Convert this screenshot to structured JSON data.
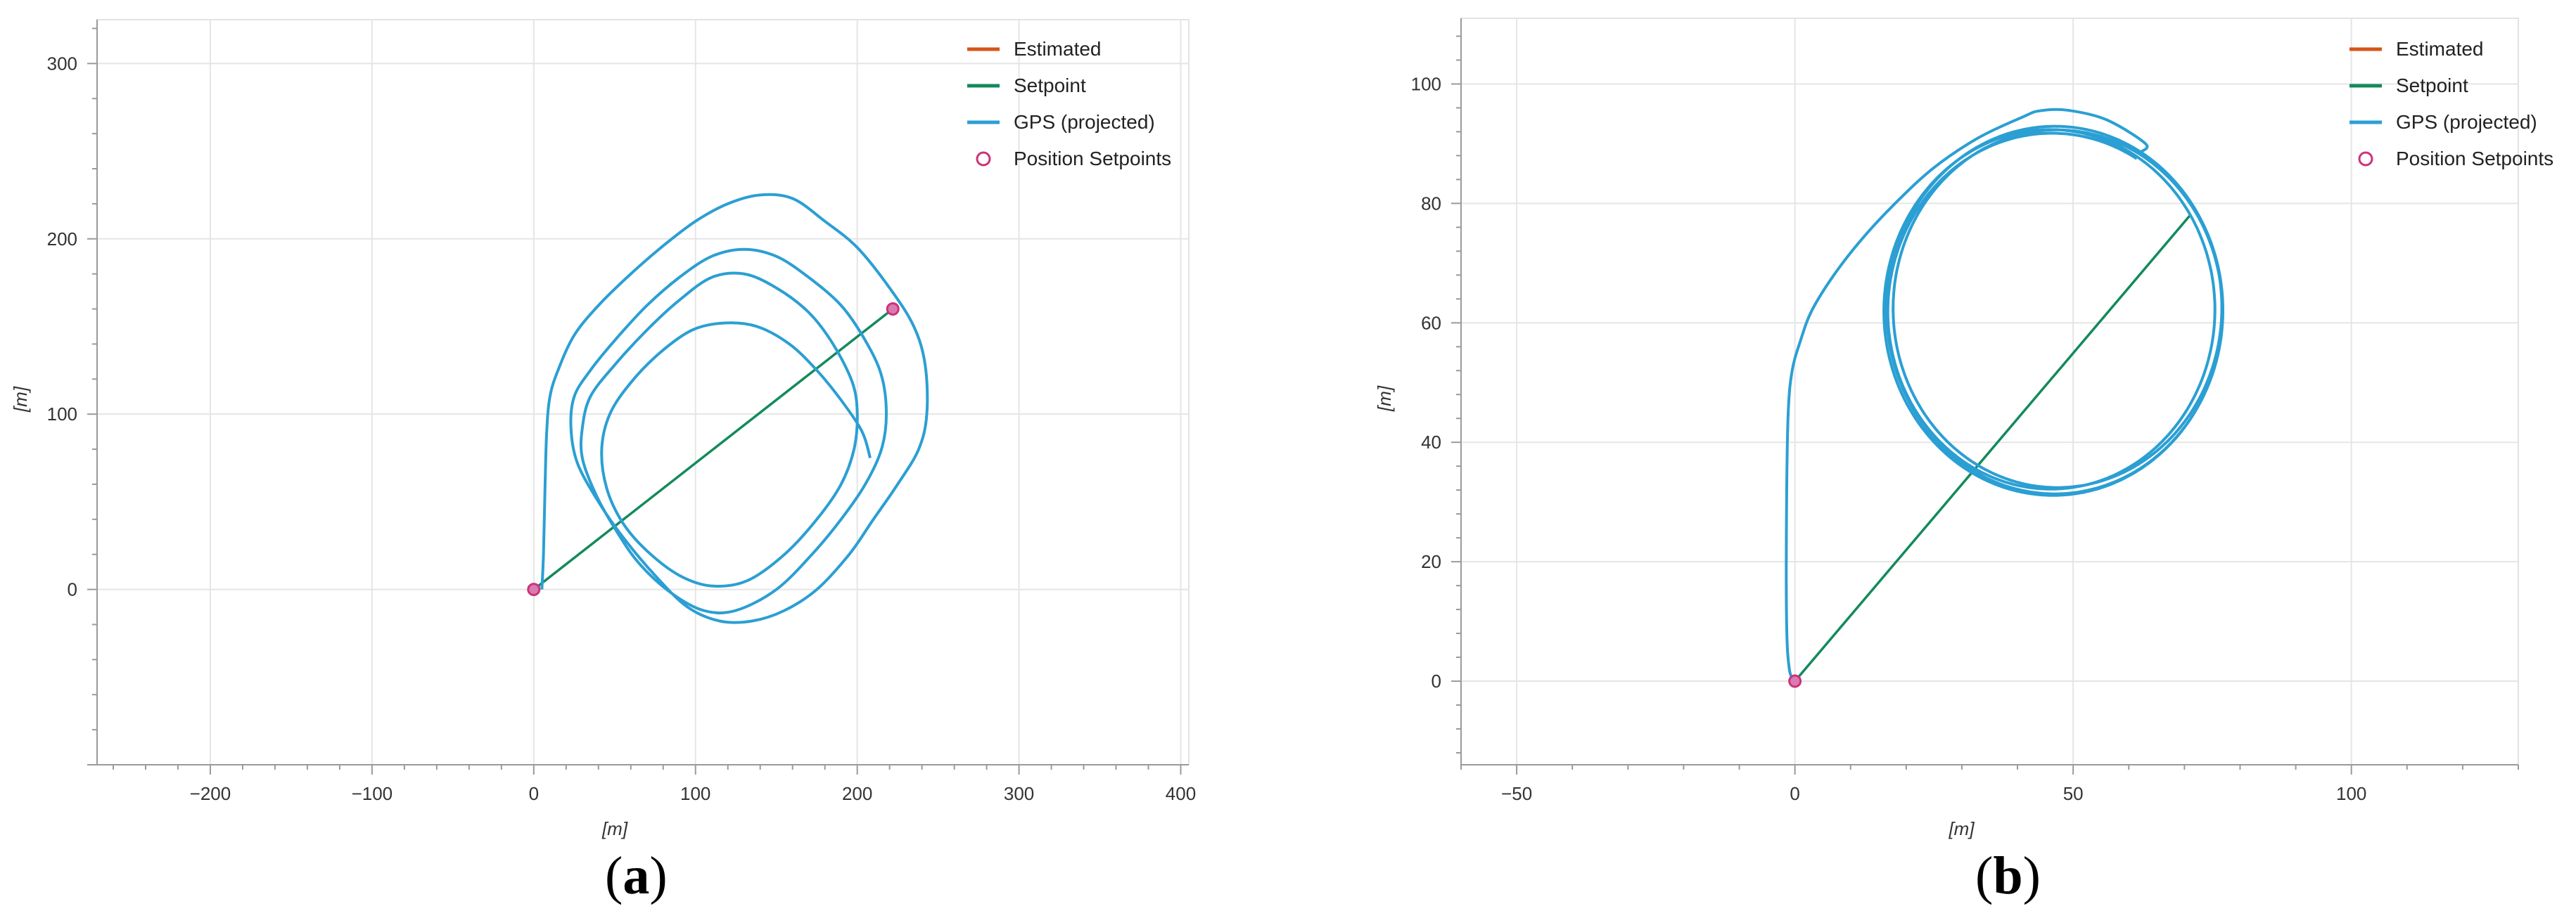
{
  "colors": {
    "estimated": "#d95319",
    "setpoint": "#138a5a",
    "gps": "#2b9fd3",
    "position_setpoint": "#cc3377",
    "grid": "#e5e5e5",
    "axis": "#9a9a9a",
    "tick_text": "#333333"
  },
  "chart_data": [
    {
      "type": "line",
      "panel_label": "a",
      "xlabel": "[m]",
      "ylabel": "[m]",
      "xlim": [
        -270,
        405
      ],
      "ylim": [
        -100,
        325
      ],
      "xticks": [
        -200,
        -100,
        0,
        100,
        200,
        300,
        400
      ],
      "yticks": [
        0,
        100,
        200,
        300
      ],
      "xtick_labels": [
        "−200",
        "−100",
        "0",
        "100",
        "200",
        "300",
        "400"
      ],
      "ytick_labels": [
        "0",
        "100",
        "200",
        "300"
      ],
      "grid": true,
      "legend_position": "top-right",
      "legend": [
        "Estimated",
        "Setpoint",
        "GPS (projected)",
        "Position Setpoints"
      ],
      "series": [
        {
          "name": "GPS (projected)",
          "points": [
            [
              5,
              0
            ],
            [
              6,
              20
            ],
            [
              7,
              60
            ],
            [
              8,
              90
            ],
            [
              10,
              110
            ],
            [
              15,
              125
            ],
            [
              25,
              145
            ],
            [
              40,
              162
            ],
            [
              60,
              180
            ],
            [
              80,
              196
            ],
            [
              100,
              210
            ],
            [
              120,
              220
            ],
            [
              140,
              225
            ],
            [
              160,
              223
            ],
            [
              180,
              210
            ],
            [
              200,
              195
            ],
            [
              220,
              172
            ],
            [
              235,
              150
            ],
            [
              242,
              128
            ],
            [
              243,
              100
            ],
            [
              238,
              80
            ],
            [
              225,
              60
            ],
            [
              210,
              40
            ],
            [
              195,
              20
            ],
            [
              175,
              0
            ],
            [
              155,
              -12
            ],
            [
              135,
              -18
            ],
            [
              115,
              -18
            ],
            [
              95,
              -10
            ],
            [
              75,
              8
            ],
            [
              55,
              30
            ],
            [
              40,
              50
            ],
            [
              27,
              72
            ],
            [
              23,
              92
            ],
            [
              25,
              110
            ],
            [
              35,
              125
            ],
            [
              50,
              142
            ],
            [
              70,
              162
            ],
            [
              90,
              178
            ],
            [
              110,
              190
            ],
            [
              130,
              194
            ],
            [
              150,
              190
            ],
            [
              170,
              178
            ],
            [
              190,
              162
            ],
            [
              205,
              142
            ],
            [
              215,
              122
            ],
            [
              218,
              100
            ],
            [
              215,
              80
            ],
            [
              205,
              60
            ],
            [
              190,
              40
            ],
            [
              172,
              20
            ],
            [
              150,
              0
            ],
            [
              125,
              -12
            ],
            [
              105,
              -12
            ],
            [
              85,
              -2
            ],
            [
              65,
              15
            ],
            [
              50,
              35
            ],
            [
              38,
              55
            ],
            [
              30,
              75
            ],
            [
              30,
              92
            ],
            [
              35,
              110
            ],
            [
              50,
              128
            ],
            [
              70,
              148
            ],
            [
              90,
              165
            ],
            [
              110,
              178
            ],
            [
              130,
              180
            ],
            [
              150,
              172
            ],
            [
              170,
              158
            ],
            [
              185,
              140
            ],
            [
              197,
              118
            ],
            [
              200,
              100
            ],
            [
              198,
              80
            ],
            [
              190,
              60
            ],
            [
              175,
              40
            ],
            [
              155,
              20
            ],
            [
              132,
              5
            ],
            [
              110,
              2
            ],
            [
              90,
              8
            ],
            [
              70,
              22
            ],
            [
              55,
              38
            ],
            [
              45,
              58
            ],
            [
              42,
              80
            ],
            [
              47,
              100
            ],
            [
              60,
              118
            ],
            [
              78,
              135
            ],
            [
              98,
              148
            ],
            [
              118,
              152
            ],
            [
              138,
              150
            ],
            [
              158,
              140
            ],
            [
              175,
              125
            ],
            [
              190,
              108
            ],
            [
              203,
              90
            ],
            [
              208,
              75
            ]
          ]
        },
        {
          "name": "Setpoint",
          "points": [
            [
              0,
              0
            ],
            [
              222,
              160
            ]
          ]
        },
        {
          "name": "Position Setpoints",
          "points": [
            [
              0,
              0
            ],
            [
              222,
              160
            ]
          ]
        }
      ]
    },
    {
      "type": "line",
      "panel_label": "b",
      "xlabel": "[m]",
      "ylabel": "[m]",
      "xlim": [
        -60,
        130
      ],
      "ylim": [
        -14,
        111
      ],
      "xticks": [
        -50,
        0,
        50,
        100
      ],
      "yticks": [
        0,
        20,
        40,
        60,
        80,
        100
      ],
      "xtick_labels": [
        "−50",
        "0",
        "50",
        "100"
      ],
      "ytick_labels": [
        "0",
        "20",
        "40",
        "60",
        "80",
        "100"
      ],
      "grid": true,
      "legend_position": "top-right",
      "legend": [
        "Estimated",
        "Setpoint",
        "GPS (projected)",
        "Position Setpoints"
      ],
      "series": [
        {
          "name": "GPS (projected)",
          "lead_in": [
            [
              0,
              0
            ],
            [
              -1,
              2
            ],
            [
              -1.5,
              10
            ],
            [
              -1.5,
              30
            ],
            [
              -1.2,
              45
            ],
            [
              -0.5,
              52
            ],
            [
              1,
              57
            ],
            [
              3,
              62
            ],
            [
              7,
              68
            ],
            [
              12,
              74
            ],
            [
              18,
              80
            ],
            [
              25,
              86
            ],
            [
              33,
              91
            ],
            [
              41,
              94.5
            ],
            [
              44,
              95.5
            ],
            [
              49,
              95.6
            ],
            [
              56,
              94
            ],
            [
              63,
              90
            ]
          ],
          "orbit": {
            "cx": 46.5,
            "cy": 62.5,
            "rx": 30,
            "ry": 30.5,
            "loops": 4
          }
        },
        {
          "name": "Setpoint",
          "points": [
            [
              0,
              0
            ],
            [
              71,
              78
            ]
          ]
        },
        {
          "name": "Position Setpoints",
          "points": [
            [
              0,
              0
            ]
          ]
        }
      ]
    }
  ]
}
